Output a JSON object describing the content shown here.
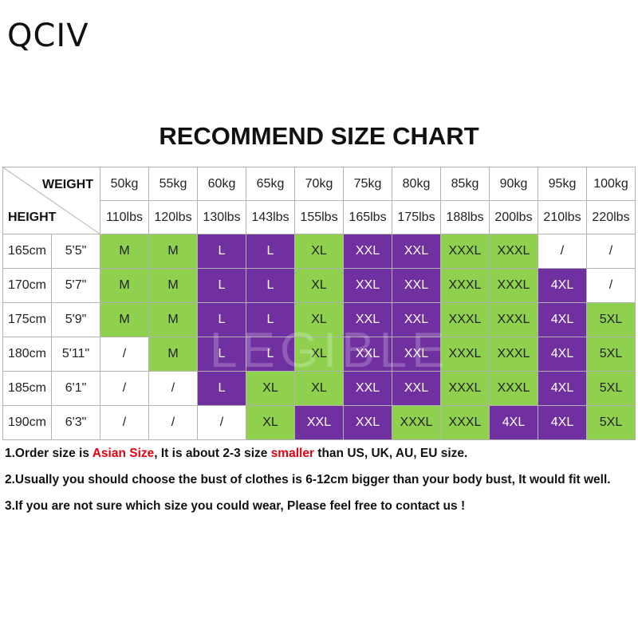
{
  "brand": {
    "logo": "QCIV"
  },
  "title": "RECOMMEND SIZE CHART",
  "watermark": "LEGIBLE",
  "colors": {
    "green": "#8fd14f",
    "purple": "#7030a0",
    "red": "#e60012"
  },
  "table": {
    "corner_weight": "WEIGHT",
    "corner_height": "HEIGHT",
    "weights_kg": [
      "50kg",
      "55kg",
      "60kg",
      "65kg",
      "70kg",
      "75kg",
      "80kg",
      "85kg",
      "90kg",
      "95kg",
      "100kg"
    ],
    "weights_lbs": [
      "110lbs",
      "120lbs",
      "130lbs",
      "143lbs",
      "155lbs",
      "165lbs",
      "175lbs",
      "188lbs",
      "200lbs",
      "210lbs",
      "220lbs"
    ],
    "rows": [
      {
        "cm": "165cm",
        "ft": "5'5\"",
        "sizes": [
          "M",
          "M",
          "L",
          "L",
          "XL",
          "XXL",
          "XXL",
          "XXXL",
          "XXXL",
          "/",
          "/"
        ],
        "colors": [
          "green",
          "green",
          "purple",
          "purple",
          "green",
          "purple",
          "purple",
          "green",
          "green",
          "white",
          "white"
        ]
      },
      {
        "cm": "170cm",
        "ft": "5'7\"",
        "sizes": [
          "M",
          "M",
          "L",
          "L",
          "XL",
          "XXL",
          "XXL",
          "XXXL",
          "XXXL",
          "4XL",
          "/"
        ],
        "colors": [
          "green",
          "green",
          "purple",
          "purple",
          "green",
          "purple",
          "purple",
          "green",
          "green",
          "purple",
          "white"
        ]
      },
      {
        "cm": "175cm",
        "ft": "5'9\"",
        "sizes": [
          "M",
          "M",
          "L",
          "L",
          "XL",
          "XXL",
          "XXL",
          "XXXL",
          "XXXL",
          "4XL",
          "5XL"
        ],
        "colors": [
          "green",
          "green",
          "purple",
          "purple",
          "green",
          "purple",
          "purple",
          "green",
          "green",
          "purple",
          "green"
        ]
      },
      {
        "cm": "180cm",
        "ft": "5'11\"",
        "sizes": [
          "/",
          "M",
          "L",
          "L",
          "XL",
          "XXL",
          "XXL",
          "XXXL",
          "XXXL",
          "4XL",
          "5XL"
        ],
        "colors": [
          "white",
          "green",
          "purple",
          "purple",
          "green",
          "purple",
          "purple",
          "green",
          "green",
          "purple",
          "green"
        ]
      },
      {
        "cm": "185cm",
        "ft": "6'1\"",
        "sizes": [
          "/",
          "/",
          "L",
          "XL",
          "XL",
          "XXL",
          "XXL",
          "XXXL",
          "XXXL",
          "4XL",
          "5XL"
        ],
        "colors": [
          "white",
          "white",
          "purple",
          "green",
          "green",
          "purple",
          "purple",
          "green",
          "green",
          "purple",
          "green"
        ]
      },
      {
        "cm": "190cm",
        "ft": "6'3\"",
        "sizes": [
          "/",
          "/",
          "/",
          "XL",
          "XXL",
          "XXL",
          "XXXL",
          "XXXL",
          "4XL",
          "4XL",
          "5XL"
        ],
        "colors": [
          "white",
          "white",
          "white",
          "green",
          "purple",
          "purple",
          "green",
          "green",
          "purple",
          "purple",
          "green"
        ]
      }
    ]
  },
  "notes": [
    {
      "parts": [
        {
          "text": "1.Order size is ",
          "red": false
        },
        {
          "text": "Asian Size",
          "red": true
        },
        {
          "text": ", It is about 2-3 size ",
          "red": false
        },
        {
          "text": "smaller",
          "red": true
        },
        {
          "text": " than US, UK, AU, EU size.",
          "red": false
        }
      ]
    },
    {
      "parts": [
        {
          "text": "2.Usually you should choose the bust of clothes is 6-12cm bigger than your body bust, It would fit well.",
          "red": false
        }
      ]
    },
    {
      "parts": [
        {
          "text": "3.If you are not sure which size you could wear, Please feel free to contact us !",
          "red": false
        }
      ]
    }
  ]
}
